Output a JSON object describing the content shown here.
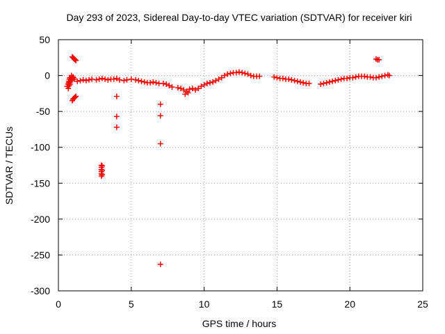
{
  "chart_data": {
    "type": "scatter",
    "title": "Day 293 of 2023, Sidereal Day-to-day VTEC variation (SDTVAR) for receiver kiri",
    "xlabel": "GPS time / hours",
    "ylabel": "SDTVAR / TECUs",
    "xlim": [
      0,
      25
    ],
    "ylim": [
      -300,
      50
    ],
    "xticks": [
      0,
      5,
      10,
      15,
      20,
      25
    ],
    "yticks": [
      50,
      0,
      -50,
      -100,
      -150,
      -200,
      -250,
      -300
    ],
    "grid": true,
    "marker": "+",
    "color": "#ff0000",
    "series": [
      {
        "name": "SDTVAR",
        "points": [
          [
            0.6,
            -15
          ],
          [
            0.65,
            -12
          ],
          [
            0.7,
            -10
          ],
          [
            0.72,
            -8
          ],
          [
            0.75,
            -5
          ],
          [
            0.78,
            -3
          ],
          [
            0.8,
            -12
          ],
          [
            0.82,
            -9
          ],
          [
            0.85,
            -6
          ],
          [
            0.87,
            -3
          ],
          [
            0.9,
            0
          ],
          [
            0.95,
            -4
          ],
          [
            0.68,
            -18
          ],
          [
            0.74,
            -14
          ],
          [
            0.9,
            -7
          ],
          [
            1.0,
            -2
          ],
          [
            1.05,
            -3
          ],
          [
            1.1,
            -5
          ],
          [
            0.95,
            26
          ],
          [
            1.0,
            25
          ],
          [
            1.05,
            24
          ],
          [
            1.1,
            23
          ],
          [
            1.15,
            22
          ],
          [
            1.2,
            21
          ],
          [
            0.95,
            -35
          ],
          [
            1.0,
            -33
          ],
          [
            1.05,
            -32
          ],
          [
            1.1,
            -31
          ],
          [
            1.15,
            -30
          ],
          [
            1.2,
            -29
          ],
          [
            1.3,
            -8
          ],
          [
            1.5,
            -7
          ],
          [
            1.7,
            -6
          ],
          [
            1.9,
            -7
          ],
          [
            2.1,
            -6
          ],
          [
            2.3,
            -5
          ],
          [
            2.6,
            -6
          ],
          [
            2.8,
            -5
          ],
          [
            3.0,
            -4
          ],
          [
            3.2,
            -5
          ],
          [
            3.4,
            -6
          ],
          [
            3.6,
            -5
          ],
          [
            3.8,
            -5
          ],
          [
            4.0,
            -4
          ],
          [
            4.2,
            -6
          ],
          [
            4.5,
            -7
          ],
          [
            4.7,
            -6
          ],
          [
            5.0,
            -5
          ],
          [
            2.95,
            -125
          ],
          [
            2.95,
            -128
          ],
          [
            2.95,
            -131
          ],
          [
            2.95,
            -134
          ],
          [
            2.95,
            -137
          ],
          [
            2.95,
            -140
          ],
          [
            3.0,
            -126
          ],
          [
            3.0,
            -132
          ],
          [
            3.0,
            -138
          ],
          [
            4.0,
            -29
          ],
          [
            4.0,
            -57
          ],
          [
            4.0,
            -72
          ],
          [
            5.3,
            -6
          ],
          [
            5.5,
            -7
          ],
          [
            5.7,
            -8
          ],
          [
            5.9,
            -9
          ],
          [
            6.1,
            -10
          ],
          [
            6.3,
            -10
          ],
          [
            6.5,
            -9
          ],
          [
            6.7,
            -10
          ],
          [
            6.9,
            -11
          ],
          [
            7.0,
            -40
          ],
          [
            7.0,
            -56
          ],
          [
            7.0,
            -95
          ],
          [
            7.0,
            -263
          ],
          [
            7.2,
            -11
          ],
          [
            7.4,
            -12
          ],
          [
            7.6,
            -14
          ],
          [
            7.8,
            -16
          ],
          [
            8.2,
            -17
          ],
          [
            8.4,
            -18
          ],
          [
            8.6,
            -20
          ],
          [
            8.8,
            -22
          ],
          [
            9.0,
            -19
          ],
          [
            8.7,
            -26
          ],
          [
            8.9,
            -24
          ],
          [
            9.2,
            -18
          ],
          [
            9.4,
            -20
          ],
          [
            9.6,
            -18
          ],
          [
            9.8,
            -15
          ],
          [
            10.0,
            -13
          ],
          [
            10.2,
            -11
          ],
          [
            10.4,
            -10
          ],
          [
            10.6,
            -9
          ],
          [
            10.8,
            -7
          ],
          [
            11.0,
            -5
          ],
          [
            11.2,
            -3
          ],
          [
            11.4,
            0
          ],
          [
            11.6,
            2
          ],
          [
            11.8,
            3
          ],
          [
            12.0,
            4
          ],
          [
            12.2,
            4
          ],
          [
            12.4,
            5
          ],
          [
            12.6,
            4
          ],
          [
            12.8,
            3
          ],
          [
            13.0,
            2
          ],
          [
            13.2,
            0
          ],
          [
            13.4,
            -1
          ],
          [
            13.6,
            -1
          ],
          [
            13.8,
            -1
          ],
          [
            14.8,
            -2
          ],
          [
            15.0,
            -3
          ],
          [
            15.2,
            -4
          ],
          [
            15.4,
            -4
          ],
          [
            15.6,
            -5
          ],
          [
            15.8,
            -5
          ],
          [
            16.0,
            -6
          ],
          [
            16.2,
            -7
          ],
          [
            16.4,
            -8
          ],
          [
            16.6,
            -9
          ],
          [
            16.8,
            -10
          ],
          [
            17.0,
            -11
          ],
          [
            17.2,
            -11
          ],
          [
            18.0,
            -12
          ],
          [
            18.2,
            -11
          ],
          [
            18.4,
            -10
          ],
          [
            18.6,
            -9
          ],
          [
            18.8,
            -8
          ],
          [
            19.0,
            -7
          ],
          [
            19.2,
            -6
          ],
          [
            19.4,
            -5
          ],
          [
            19.6,
            -4
          ],
          [
            19.8,
            -4
          ],
          [
            20.0,
            -3
          ],
          [
            20.2,
            -3
          ],
          [
            20.4,
            -2
          ],
          [
            20.6,
            -1
          ],
          [
            20.8,
            -1
          ],
          [
            21.0,
            -1
          ],
          [
            21.2,
            -2
          ],
          [
            21.4,
            -2
          ],
          [
            21.6,
            -3
          ],
          [
            21.8,
            -3
          ],
          [
            22.0,
            -2
          ],
          [
            22.2,
            -1
          ],
          [
            22.4,
            0
          ],
          [
            22.6,
            1
          ],
          [
            22.7,
            0
          ],
          [
            21.8,
            23
          ],
          [
            21.9,
            22
          ],
          [
            22.0,
            22
          ]
        ]
      }
    ]
  }
}
